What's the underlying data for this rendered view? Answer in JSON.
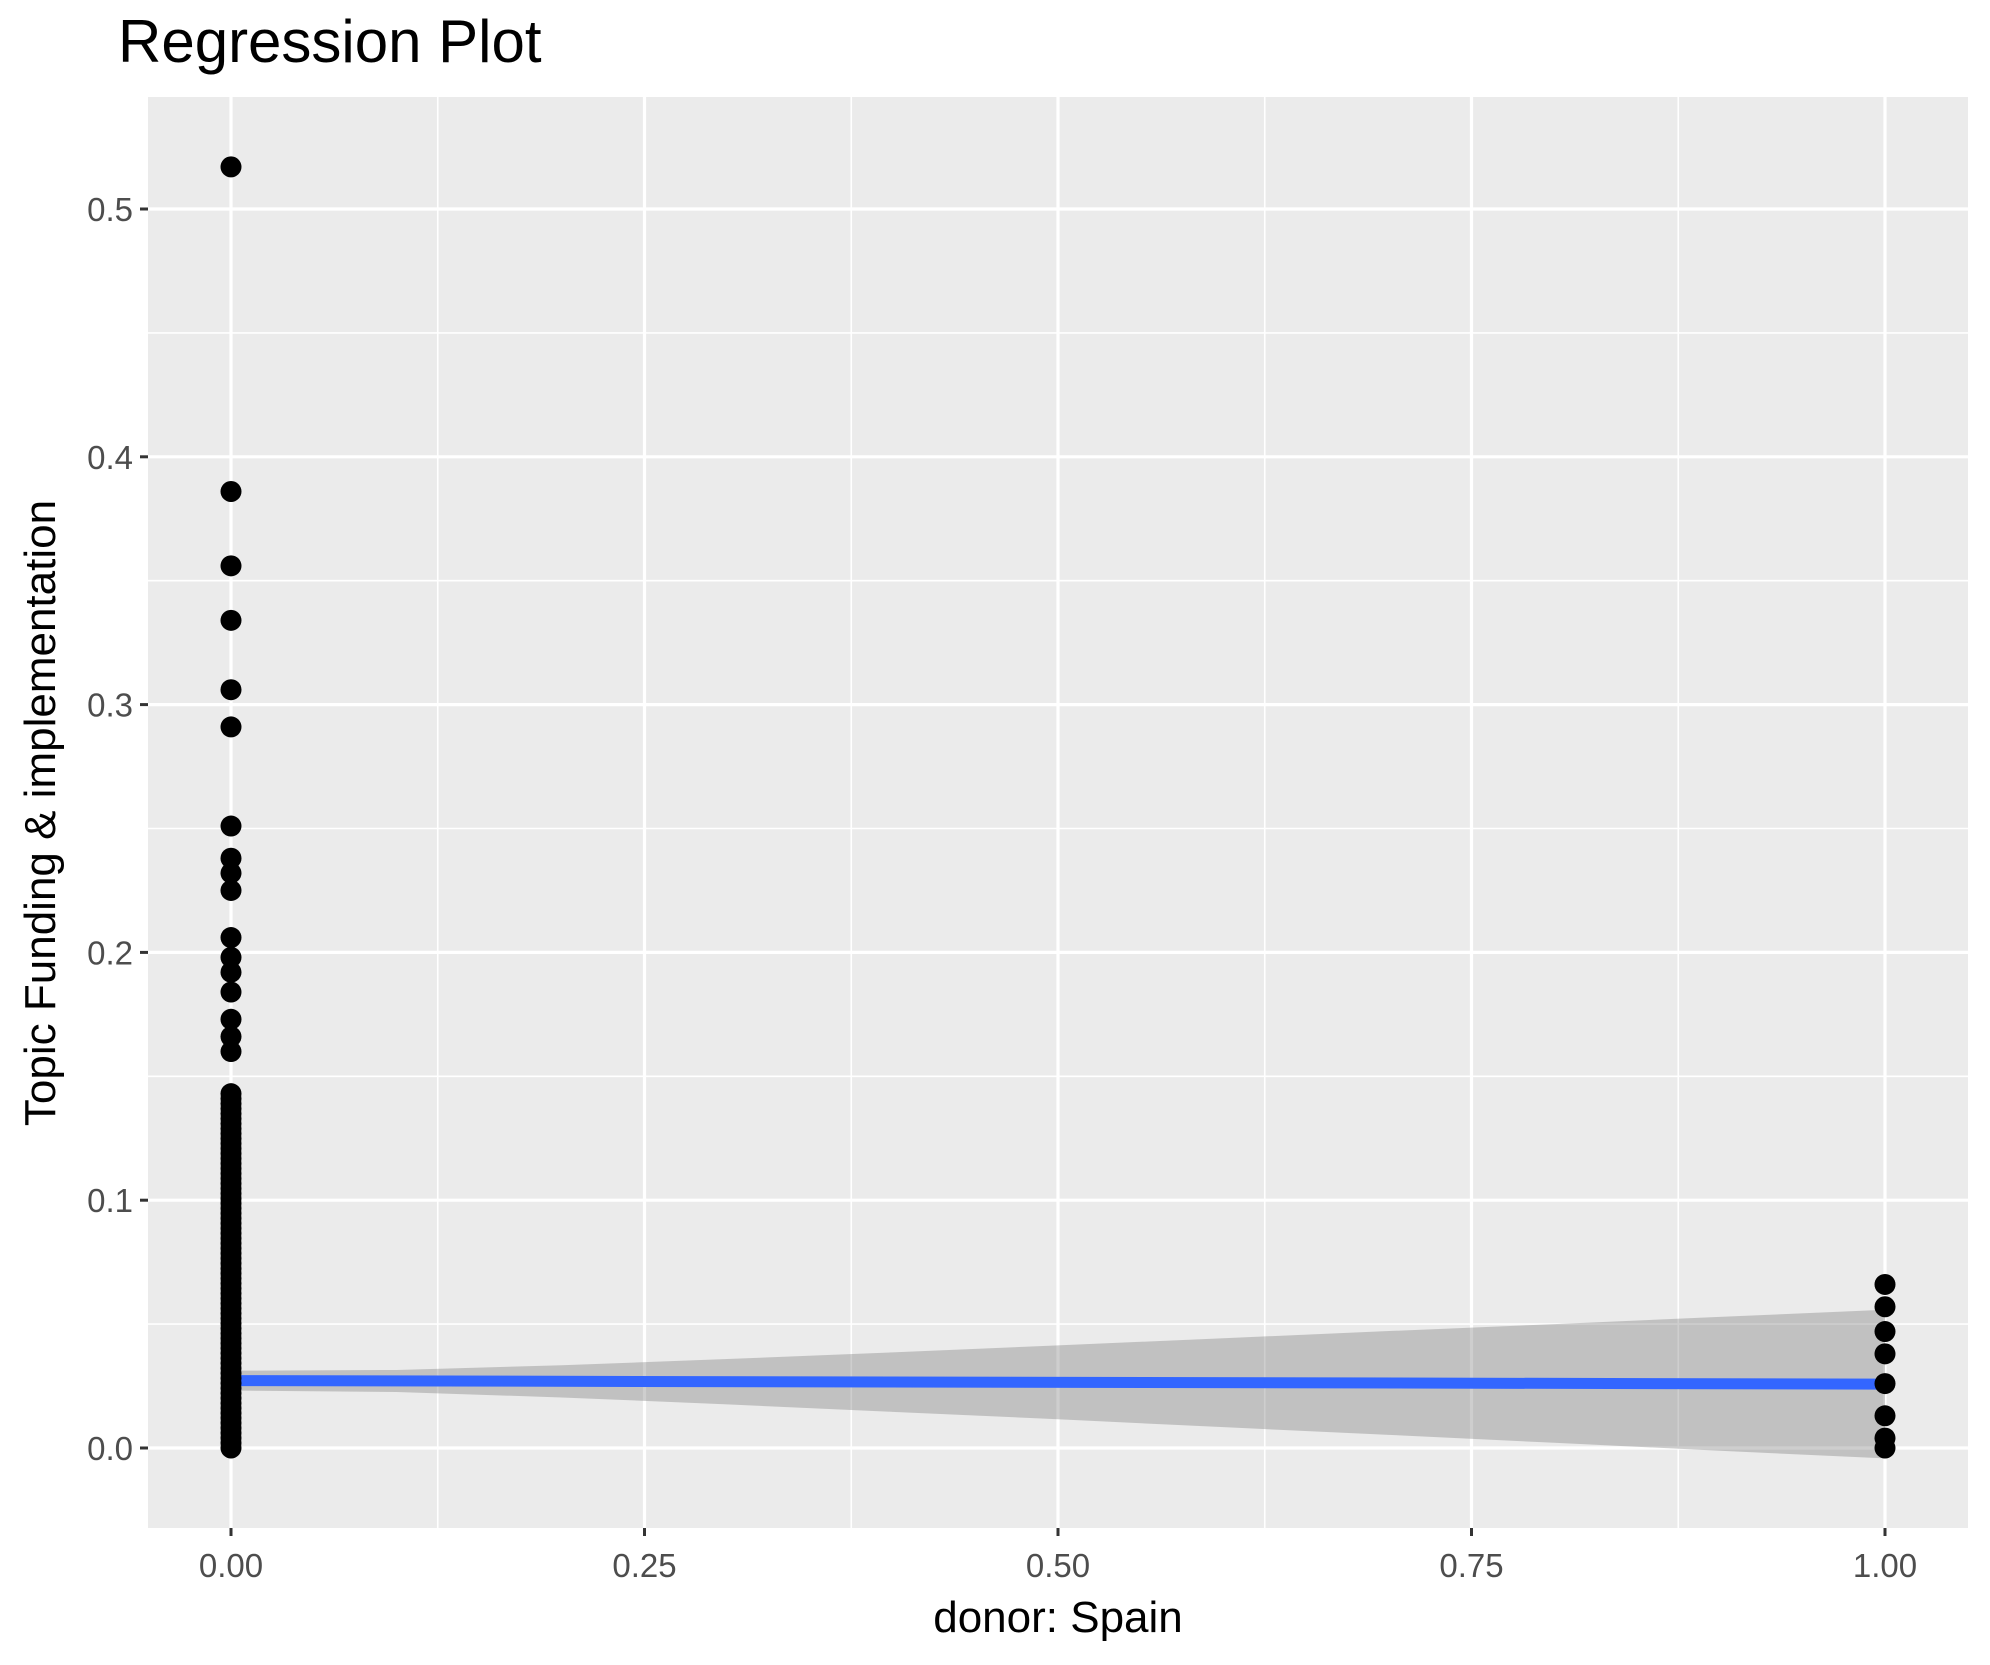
{
  "chart_data": {
    "type": "scatter",
    "title": "Regression Plot",
    "xlabel": "donor: Spain",
    "ylabel": "Topic Funding & implementation",
    "x_tick_labels": [
      "0.00",
      "0.25",
      "0.50",
      "0.75",
      "1.00"
    ],
    "x_tick_values": [
      0,
      0.25,
      0.5,
      0.75,
      1
    ],
    "y_tick_labels": [
      "0.0",
      "0.1",
      "0.2",
      "0.3",
      "0.4",
      "0.5"
    ],
    "y_tick_values": [
      0,
      0.1,
      0.2,
      0.3,
      0.4,
      0.5
    ],
    "x_minor_gridlines": [
      0.125,
      0.375,
      0.625,
      0.875
    ],
    "y_minor_gridlines": [
      0.05,
      0.15,
      0.25,
      0.35,
      0.45
    ],
    "xlim": [
      -0.05,
      1.05
    ],
    "ylim": [
      -0.033,
      0.546
    ],
    "grid": true,
    "legend": "none",
    "series": [
      {
        "name": "observations at donor = 0 (distinct upper points)",
        "x": 0,
        "y": [
          0.517,
          0.386,
          0.356,
          0.334,
          0.306,
          0.291,
          0.251,
          0.238,
          0.232,
          0.225,
          0.206,
          0.198,
          0.192,
          0.184,
          0.173,
          0.166,
          0.16
        ]
      },
      {
        "name": "observations at donor = 0 (dense overlapping column)",
        "x": 0,
        "dense_range": {
          "y_min": 0.0,
          "y_max": 0.143,
          "count": 72
        }
      },
      {
        "name": "observations at donor = 1",
        "x": 1,
        "y": [
          0.066,
          0.057,
          0.047,
          0.038,
          0.026,
          0.013,
          0.004,
          0.0
        ]
      }
    ],
    "regression_line": {
      "x": [
        0,
        1
      ],
      "y": [
        0.0272,
        0.0258
      ]
    },
    "confidence_band": {
      "x": [
        0,
        0.1,
        0.2,
        0.3,
        0.4,
        0.5,
        0.6,
        0.7,
        0.8,
        0.9,
        1.0
      ],
      "upper": [
        0.0312,
        0.0315,
        0.0334,
        0.0359,
        0.0386,
        0.0414,
        0.0443,
        0.0472,
        0.05,
        0.0529,
        0.0558
      ],
      "lower": [
        0.0232,
        0.0226,
        0.0204,
        0.0176,
        0.0146,
        0.0116,
        0.0084,
        0.0053,
        0.0021,
        -0.0011,
        -0.0042
      ]
    },
    "colors": {
      "panel_background": "#EBEBEB",
      "gridline": "#FFFFFF",
      "point": "#000000",
      "regression_line": "#3366FF",
      "confidence_band": "rgba(125,125,125,0.38)",
      "tick_label": "#4D4D4D",
      "tick_mark": "#333333",
      "title_text": "#000000"
    }
  }
}
